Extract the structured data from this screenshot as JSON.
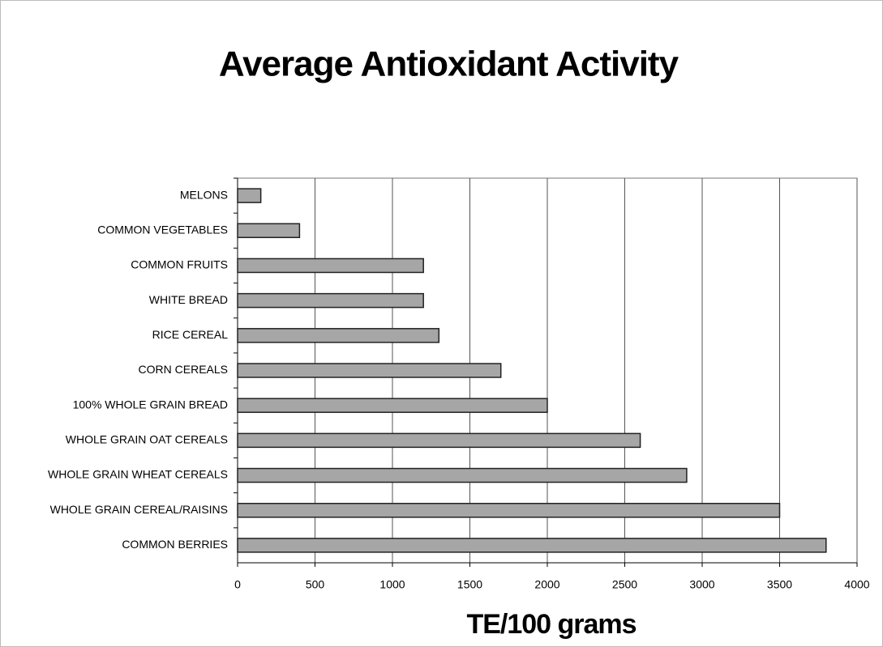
{
  "chart_data": {
    "type": "bar",
    "orientation": "horizontal",
    "title": "Average Antioxidant Activity",
    "x_label": "TE/100 grams",
    "categories": [
      "MELONS",
      "COMMON VEGETABLES",
      "COMMON FRUITS",
      "WHITE BREAD",
      "RICE CEREAL",
      "CORN CEREALS",
      "100% WHOLE GRAIN BREAD",
      "WHOLE GRAIN OAT CEREALS",
      "WHOLE GRAIN WHEAT CEREALS",
      "WHOLE GRAIN CEREAL/RAISINS",
      "COMMON BERRIES"
    ],
    "values": [
      150,
      400,
      1200,
      1200,
      1300,
      1700,
      2000,
      2600,
      2900,
      3500,
      3800
    ],
    "color": "#a6a6a6",
    "xlim": [
      0,
      4000
    ],
    "xticks": [
      0,
      500,
      1000,
      1500,
      2000,
      2500,
      3000,
      3500,
      4000
    ],
    "grid": true
  }
}
